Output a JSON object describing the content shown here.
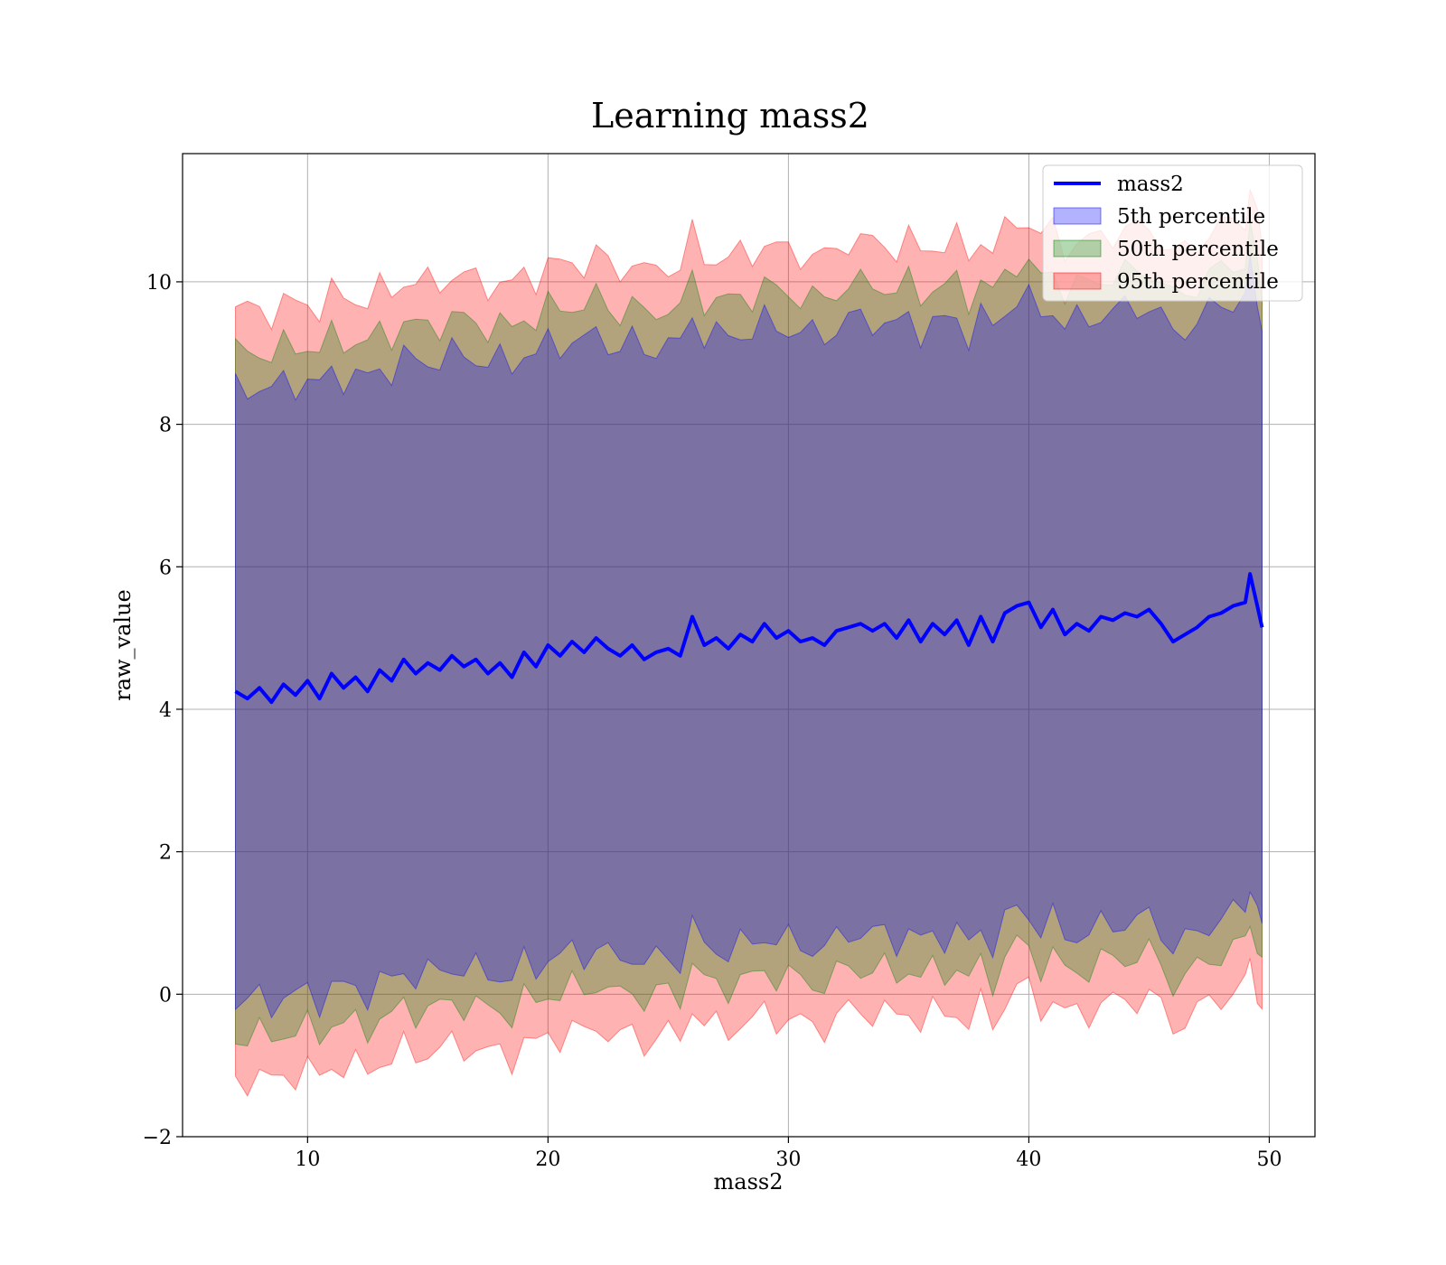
{
  "chart_data": {
    "type": "line",
    "title": "Learning mass2",
    "xlabel": "mass2",
    "ylabel": "raw_value",
    "xlim": [
      4.8,
      51.9
    ],
    "ylim": [
      -2.0,
      11.8
    ],
    "x_ticks": [
      10,
      20,
      30,
      40,
      50
    ],
    "y_ticks": [
      -2,
      0,
      2,
      4,
      6,
      8,
      10
    ],
    "x_tick_labels": [
      "10",
      "20",
      "30",
      "40",
      "50"
    ],
    "y_tick_labels": [
      "−2",
      "0",
      "2",
      "4",
      "6",
      "8",
      "10"
    ],
    "grid": true,
    "legend_position": "top-right",
    "line_series": {
      "name": "mass2",
      "color": "#0000ff",
      "x": [
        7.0,
        7.5,
        8.0,
        8.5,
        9.0,
        9.5,
        10.0,
        10.5,
        11.0,
        11.5,
        12.0,
        12.5,
        13.0,
        13.5,
        14.0,
        14.5,
        15.0,
        15.5,
        16.0,
        16.5,
        17.0,
        17.5,
        18.0,
        18.5,
        19.0,
        19.5,
        20.0,
        20.5,
        21.0,
        21.5,
        22.0,
        22.5,
        23.0,
        23.5,
        24.0,
        24.5,
        25.0,
        25.5,
        26.0,
        26.5,
        27.0,
        27.5,
        28.0,
        28.5,
        29.0,
        29.5,
        30.0,
        30.5,
        31.0,
        31.5,
        32.0,
        32.5,
        33.0,
        33.5,
        34.0,
        34.5,
        35.0,
        35.5,
        36.0,
        36.5,
        37.0,
        37.5,
        38.0,
        38.5,
        39.0,
        39.5,
        40.0,
        40.5,
        41.0,
        41.5,
        42.0,
        42.5,
        43.0,
        43.5,
        44.0,
        44.5,
        45.0,
        45.5,
        46.0,
        46.5,
        47.0,
        47.5,
        48.0,
        48.5,
        49.0,
        49.2,
        49.5,
        49.7
      ],
      "y": [
        4.25,
        4.15,
        4.3,
        4.1,
        4.35,
        4.2,
        4.4,
        4.15,
        4.5,
        4.3,
        4.45,
        4.25,
        4.55,
        4.4,
        4.7,
        4.5,
        4.65,
        4.55,
        4.75,
        4.6,
        4.7,
        4.5,
        4.65,
        4.45,
        4.8,
        4.6,
        4.9,
        4.75,
        4.95,
        4.8,
        5.0,
        4.85,
        4.75,
        4.9,
        4.7,
        4.8,
        4.85,
        4.75,
        5.3,
        4.9,
        5.0,
        4.85,
        5.05,
        4.95,
        5.2,
        5.0,
        5.1,
        4.95,
        5.0,
        4.9,
        5.1,
        5.15,
        5.2,
        5.1,
        5.2,
        5.0,
        5.25,
        4.95,
        5.2,
        5.05,
        5.25,
        4.9,
        5.3,
        4.95,
        5.35,
        5.45,
        5.5,
        5.15,
        5.4,
        5.05,
        5.2,
        5.1,
        5.3,
        5.25,
        5.35,
        5.3,
        5.4,
        5.2,
        4.95,
        5.05,
        5.15,
        5.3,
        5.35,
        5.45,
        5.5,
        5.9,
        5.45,
        5.15
      ]
    },
    "bands": [
      {
        "name": "5th percentile",
        "color": "#0000ff",
        "alpha": 0.3,
        "offset": 4.3
      },
      {
        "name": "50th percentile",
        "color": "#008000",
        "alpha": 0.3,
        "offset": 4.8
      },
      {
        "name": "95th percentile",
        "color": "#ff0000",
        "alpha": 0.3,
        "offset": 5.4
      }
    ]
  }
}
